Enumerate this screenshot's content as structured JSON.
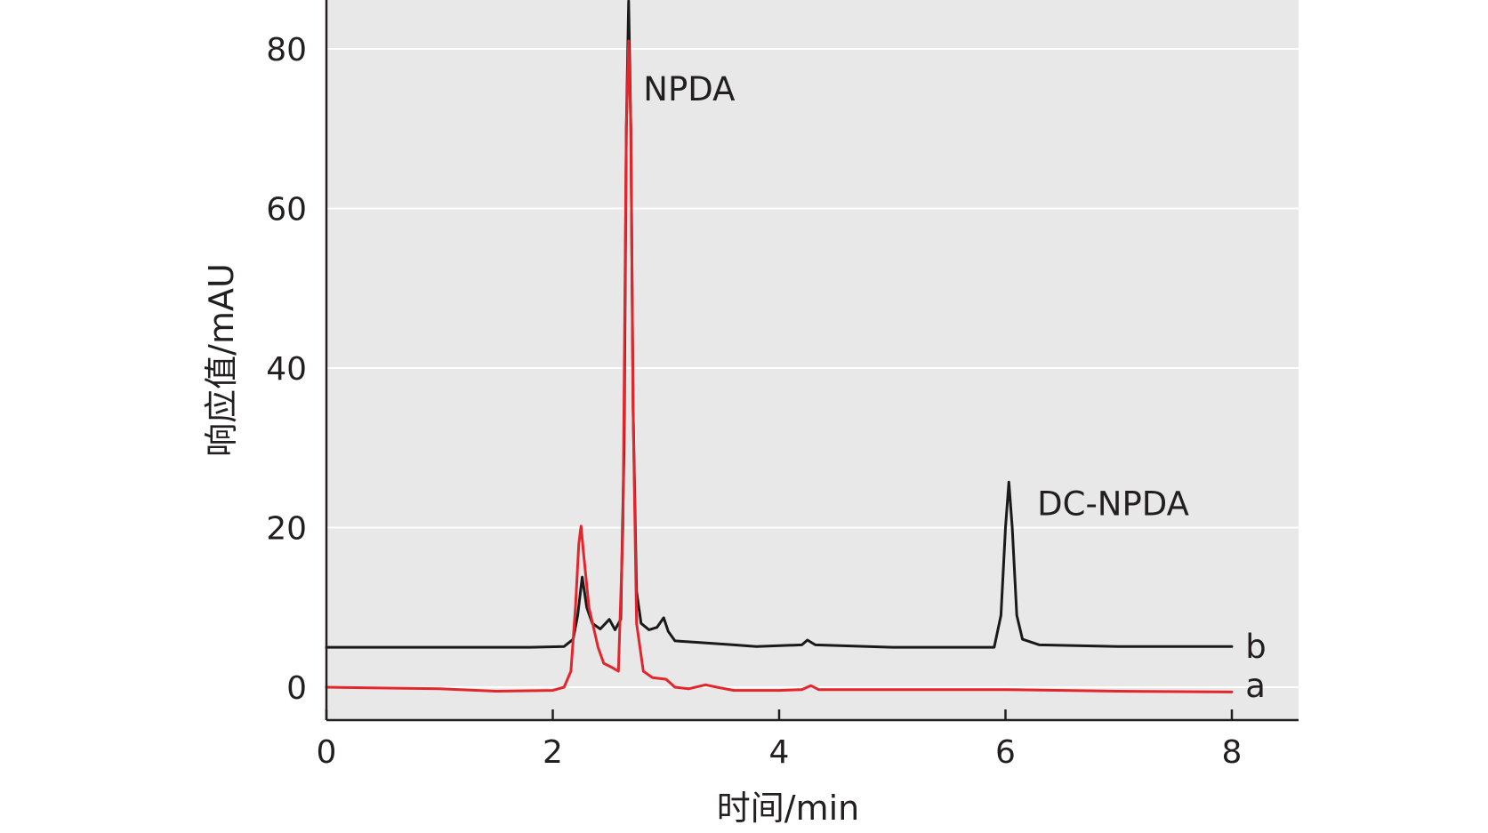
{
  "chart_data": {
    "type": "line",
    "title": "",
    "xlabel": "时间/min",
    "ylabel": "响应值/mAU",
    "xlim": [
      0,
      8.6
    ],
    "ylim": [
      -4,
      86
    ],
    "x_ticks": [
      0,
      2,
      4,
      6,
      8
    ],
    "y_ticks": [
      0,
      20,
      40,
      60,
      80
    ],
    "grid": "horizontal",
    "colors": {
      "background": "#e8e8e8",
      "gridline": "#ffffff",
      "axis": "#231f20"
    },
    "series": [
      {
        "name": "b",
        "color": "#1a1a1a",
        "points": [
          [
            0.0,
            5.0
          ],
          [
            1.0,
            5.0
          ],
          [
            1.8,
            5.0
          ],
          [
            2.1,
            5.1
          ],
          [
            2.18,
            6.0
          ],
          [
            2.22,
            9.0
          ],
          [
            2.26,
            13.8
          ],
          [
            2.3,
            10.0
          ],
          [
            2.35,
            8.0
          ],
          [
            2.42,
            7.3
          ],
          [
            2.5,
            8.5
          ],
          [
            2.55,
            7.2
          ],
          [
            2.6,
            8.5
          ],
          [
            2.63,
            30.0
          ],
          [
            2.65,
            70.0
          ],
          [
            2.67,
            86.0
          ],
          [
            2.69,
            70.0
          ],
          [
            2.71,
            35.0
          ],
          [
            2.74,
            12.0
          ],
          [
            2.78,
            8.0
          ],
          [
            2.85,
            7.2
          ],
          [
            2.92,
            7.5
          ],
          [
            2.98,
            8.7
          ],
          [
            3.02,
            7.0
          ],
          [
            3.08,
            5.8
          ],
          [
            3.3,
            5.6
          ],
          [
            3.6,
            5.3
          ],
          [
            3.8,
            5.1
          ],
          [
            4.2,
            5.3
          ],
          [
            4.25,
            5.9
          ],
          [
            4.32,
            5.3
          ],
          [
            5.0,
            5.0
          ],
          [
            5.9,
            5.0
          ],
          [
            5.96,
            9.0
          ],
          [
            6.0,
            20.0
          ],
          [
            6.03,
            25.7
          ],
          [
            6.06,
            20.0
          ],
          [
            6.1,
            9.0
          ],
          [
            6.15,
            6.0
          ],
          [
            6.3,
            5.3
          ],
          [
            7.0,
            5.1
          ],
          [
            8.0,
            5.1
          ]
        ]
      },
      {
        "name": "a",
        "color": "#e3262b",
        "points": [
          [
            0.0,
            0.0
          ],
          [
            1.0,
            -0.2
          ],
          [
            1.5,
            -0.5
          ],
          [
            2.0,
            -0.4
          ],
          [
            2.1,
            0.0
          ],
          [
            2.16,
            2.0
          ],
          [
            2.2,
            10.0
          ],
          [
            2.23,
            18.0
          ],
          [
            2.25,
            20.2
          ],
          [
            2.27,
            17.0
          ],
          [
            2.32,
            10.0
          ],
          [
            2.4,
            5.0
          ],
          [
            2.45,
            3.0
          ],
          [
            2.52,
            2.5
          ],
          [
            2.58,
            2.0
          ],
          [
            2.62,
            20.0
          ],
          [
            2.65,
            70.0
          ],
          [
            2.67,
            81.0
          ],
          [
            2.69,
            70.0
          ],
          [
            2.71,
            35.0
          ],
          [
            2.74,
            8.0
          ],
          [
            2.8,
            2.0
          ],
          [
            2.88,
            1.2
          ],
          [
            3.0,
            1.0
          ],
          [
            3.08,
            0.0
          ],
          [
            3.2,
            -0.2
          ],
          [
            3.35,
            0.3
          ],
          [
            3.45,
            0.0
          ],
          [
            3.6,
            -0.4
          ],
          [
            4.0,
            -0.4
          ],
          [
            4.2,
            -0.3
          ],
          [
            4.28,
            0.2
          ],
          [
            4.35,
            -0.3
          ],
          [
            5.0,
            -0.3
          ],
          [
            6.0,
            -0.3
          ],
          [
            7.0,
            -0.5
          ],
          [
            8.0,
            -0.6
          ]
        ]
      }
    ],
    "annotations": [
      {
        "text": "NPDA",
        "x": 2.8,
        "y": 75
      },
      {
        "text": "DC-NPDA",
        "x": 6.28,
        "y": 23
      },
      {
        "text": "b",
        "x": 8.12,
        "y": 5.1
      },
      {
        "text": "a",
        "x": 8.12,
        "y": 0.2
      }
    ]
  }
}
